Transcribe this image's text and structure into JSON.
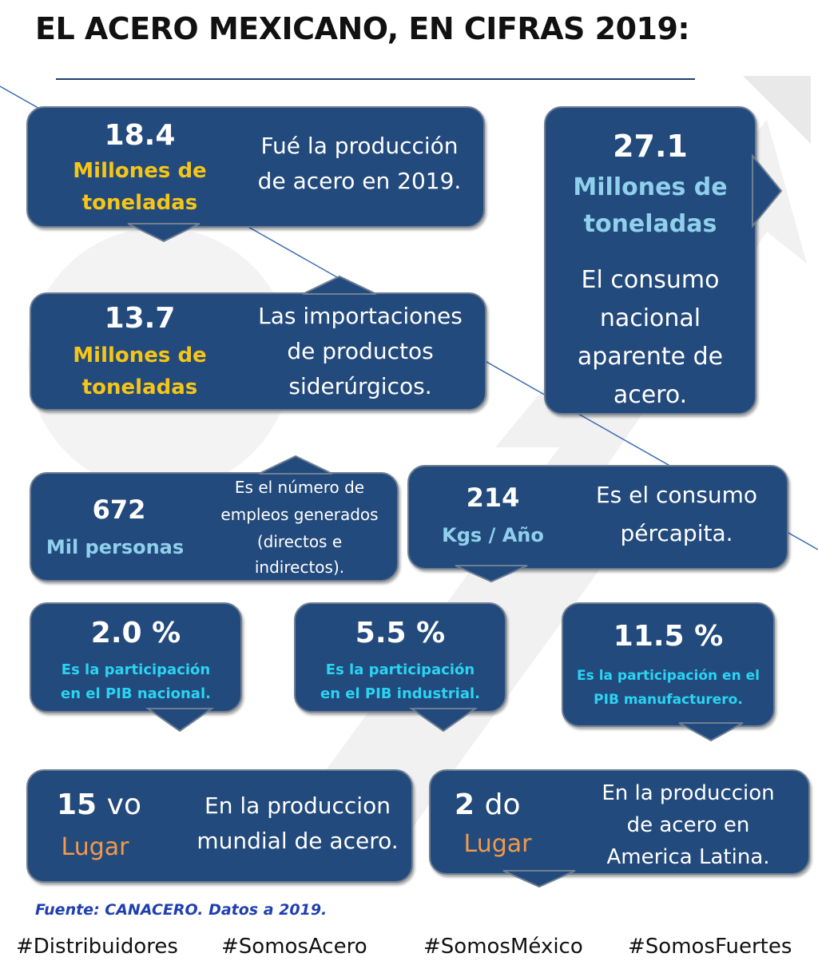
{
  "title": "EL ACERO MEXICANO, EN CIFRAS 2019:",
  "colors": {
    "box": "#234a7c",
    "yellow": "#f5c518",
    "light_blue": "#8fd0ec",
    "cyan": "#2ad4f3",
    "orange": "#f39a4a",
    "source": "#1f3fb0"
  },
  "stats": {
    "production": {
      "value": "18.4",
      "unit_line1": "Millones de",
      "unit_line2": "toneladas",
      "desc_line1": "Fué la producción",
      "desc_line2": "de acero en 2019."
    },
    "consumption": {
      "value": "27.1",
      "unit_line1": "Millones de",
      "unit_line2": "toneladas",
      "desc_line1": "El consumo",
      "desc_line2": "nacional",
      "desc_line3": "aparente de",
      "desc_line4": "acero."
    },
    "imports": {
      "value": "13.7",
      "unit_line1": "Millones de",
      "unit_line2": "toneladas",
      "desc_line1": "Las importaciones",
      "desc_line2": "de productos",
      "desc_line3": "siderúrgicos."
    },
    "employment": {
      "value": "672",
      "unit": "Mil personas",
      "desc_line1": "Es el número de",
      "desc_line2": "empleos generados",
      "desc_line3": "(directos e",
      "desc_line4": "indirectos)."
    },
    "per_capita": {
      "value": "214",
      "unit": "Kgs / Año",
      "desc_line1": "Es el consumo",
      "desc_line2": "pércapita."
    },
    "gdp_national": {
      "value": "2.0 %",
      "desc_line1": "Es la participación",
      "desc_line2": "en el PIB nacional."
    },
    "gdp_industrial": {
      "value": "5.5 %",
      "desc_line1": "Es la participación",
      "desc_line2": "en el PIB industrial."
    },
    "gdp_manufacturing": {
      "value": "11.5 %",
      "desc_line1": "Es la participación en el",
      "desc_line2": "PIB manufacturero."
    },
    "world_rank": {
      "value": "15",
      "suffix": "vo",
      "unit": "Lugar",
      "desc_line1": "En la produccion",
      "desc_line2": "mundial de acero."
    },
    "latam_rank": {
      "value": "2",
      "suffix": "do",
      "unit": "Lugar",
      "desc_line1": "En la produccion",
      "desc_line2": "de acero en",
      "desc_line3": "America Latina."
    }
  },
  "source": "Fuente: CANACERO. Datos a 2019.",
  "hashtags": [
    "#Distribuidores",
    "#SomosAcero",
    "#SomosMéxico",
    "#SomosFuertes"
  ]
}
